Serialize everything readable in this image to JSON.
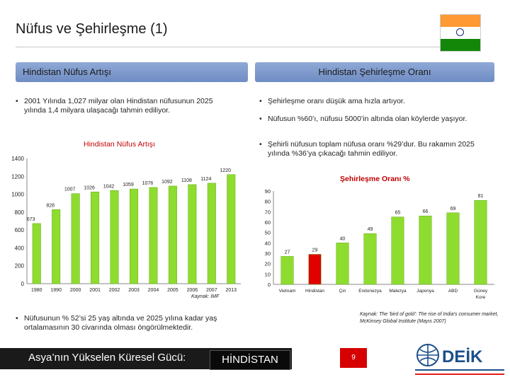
{
  "title": "Nüfus ve Şehirleşme (1)",
  "left_panel": {
    "heading": "Hindistan Nüfus Artışı",
    "bullet1": "2001 Yılında 1,027 milyar olan Hindistan nüfusunun 2025 yılında 1,4 milyara ulaşacağı tahmin ediliyor.",
    "bottom_bullet": "Nüfusunun % 52’si 25 yaş altında ve 2025 yılına kadar yaş ortalamasının 30 civarında olması öngörülmektedir."
  },
  "right_panel": {
    "heading": "Hindistan Şehirleşme Oranı",
    "bullets": [
      "Şehirleşme oranı düşük ama hızla artıyor.",
      "Nüfusun %60’ı, nüfusu 5000’in altında olan köylerde yaşıyor.",
      "Şehirli nüfusun toplam nüfusa oranı %29’dur. Bu rakamın 2025 yılında %36’ya çıkacağı tahmin ediliyor."
    ],
    "source": "Kaynak: The 'bird of gold': The rise of India's consumer market, McKinsey Global Institute (Mayıs 2007)"
  },
  "footer": {
    "caption": "Asya’nın Yükselen Küresel Gücü:",
    "highlight": "HİNDİSTAN",
    "page": "9"
  },
  "colors": {
    "panel_header": "#7f9ccf",
    "bar_green": "#8edc2f",
    "bar_red": "#e00000",
    "chart_title": "#c00000",
    "footer_red": "#d60000"
  },
  "chart_data": [
    {
      "type": "bar",
      "title": "Hindistan Nüfus Artışı",
      "categories": [
        "1980",
        "1990",
        "2000",
        "2001",
        "2002",
        "2003",
        "2004",
        "2005",
        "2006",
        "2007",
        "2013"
      ],
      "values": [
        673,
        828,
        1007,
        1026,
        1042,
        1059,
        1076,
        1092,
        1108,
        1124,
        1220
      ],
      "ylim": [
        0,
        1400
      ],
      "yticks": [
        0,
        200,
        400,
        600,
        800,
        1000,
        1200,
        1400
      ],
      "source": "Kaynak: IMF",
      "grid": false
    },
    {
      "type": "bar",
      "title": "Şehirleşme Oranı %",
      "categories": [
        "Vietnam",
        "Hindistan",
        "Çin",
        "Endonezya",
        "Malezya",
        "Japonya",
        "ABD",
        "Güney Kore"
      ],
      "values": [
        27,
        29,
        40,
        49,
        65,
        66,
        69,
        81
      ],
      "highlight": "Hindistan",
      "ylim": [
        0,
        90
      ],
      "yticks": [
        0,
        10,
        20,
        30,
        40,
        50,
        60,
        70,
        80,
        90
      ],
      "grid": false
    }
  ]
}
